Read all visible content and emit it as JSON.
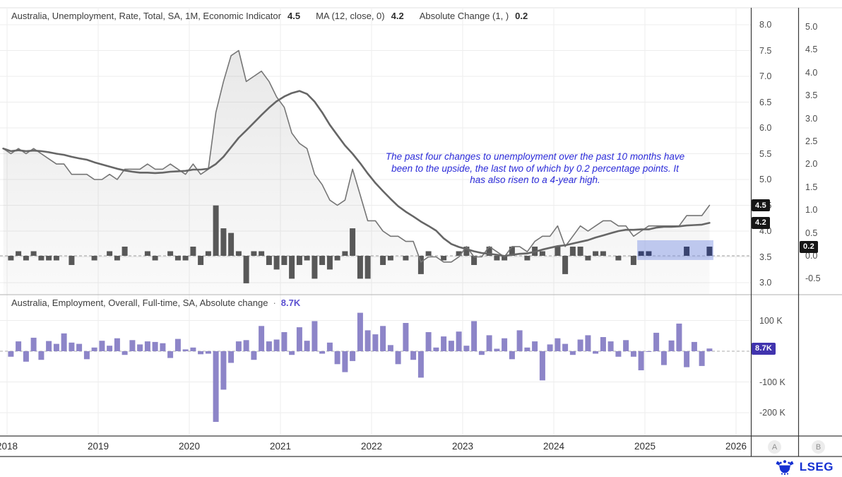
{
  "panel1": {
    "legend": [
      {
        "label": "Australia, Unemployment, Rate, Total, SA, 1M, Economic Indicator",
        "value": "4.5"
      },
      {
        "label": "MA (12, close, 0)",
        "value": "4.2"
      },
      {
        "label": "Absolute Change (1, )",
        "value": "0.2"
      }
    ],
    "annotation": "The past four changes to unemployment over the past 10 months have been to the upside, the last two of which by 0.2 percentage points. It has also risen to a 4-year high.",
    "badges": {
      "rate": "4.5",
      "ma": "4.2",
      "change": "0.2"
    }
  },
  "panel2": {
    "legend_label": "Australia, Employment, Overall, Full-time, SA, Absolute change",
    "separator": "·",
    "legend_value": "8.7K",
    "badge": "8.7K"
  },
  "axes": {
    "panel1_left_ticks": [
      "8.0",
      "7.5",
      "7.0",
      "6.5",
      "6.0",
      "5.5",
      "5.0",
      "4.5",
      "4.0",
      "3.5",
      "3.0"
    ],
    "panel1_right_ticks": [
      "5.0",
      "4.5",
      "4.0",
      "3.5",
      "3.0",
      "2.5",
      "2.0",
      "1.5",
      "1.0",
      "0.5",
      "0.0",
      "-0.5"
    ],
    "panel2_ticks": [
      "100 K",
      "-100 K",
      "-200 K"
    ],
    "years": [
      "2018",
      "2019",
      "2020",
      "2021",
      "2022",
      "2023",
      "2024",
      "2025",
      "2026"
    ]
  },
  "axis_buttons": {
    "a": "A",
    "b": "B"
  },
  "footer": {
    "logo": "LSEG"
  },
  "colors": {
    "grid": "#ededed",
    "frame_dark": "#3a3a3a",
    "divider": "#b0b0b0",
    "rate_line": "#757575",
    "ma_line": "#666666",
    "area_fill_top": "rgba(95,95,95,0.14)",
    "area_fill_bottom": "rgba(95,95,95,0.03)",
    "change_bar": "#585858",
    "highlight_bar": "#3a4470",
    "highlight_fill": "rgba(134,153,230,0.5)",
    "employment_bar": "#8d85c8",
    "zero_dash": "#9a9a9a",
    "annotation_blue": "#2b2bd8",
    "badge_dark": "#161616",
    "badge_indigo": "#4134ae",
    "lseg_blue": "#1631d2"
  },
  "chart_data": [
    {
      "type": "line",
      "title": "Australia, Unemployment, Rate, Total, SA, 1M, Economic Indicator",
      "x_start": "2017-12",
      "frequency": "monthly",
      "left_axis_range": [
        3.0,
        8.0
      ],
      "right_axis_range": [
        -0.5,
        5.0
      ],
      "legend_position": "top-left",
      "grid": true,
      "series": [
        {
          "name": "Unemployment rate % (SA)",
          "type": "line-area",
          "axis": "left",
          "values": [
            5.6,
            5.5,
            5.6,
            5.5,
            5.6,
            5.5,
            5.4,
            5.3,
            5.3,
            5.1,
            5.1,
            5.1,
            5.0,
            5.0,
            5.1,
            5.0,
            5.2,
            5.2,
            5.2,
            5.3,
            5.2,
            5.2,
            5.3,
            5.2,
            5.1,
            5.3,
            5.1,
            5.2,
            6.3,
            6.9,
            7.4,
            7.5,
            6.9,
            7.0,
            7.1,
            6.9,
            6.6,
            6.4,
            5.9,
            5.7,
            5.6,
            5.1,
            4.9,
            4.6,
            4.5,
            4.6,
            5.2,
            4.7,
            4.2,
            4.2,
            4.0,
            3.9,
            3.9,
            3.8,
            3.8,
            3.4,
            3.5,
            3.5,
            3.4,
            3.4,
            3.5,
            3.7,
            3.5,
            3.5,
            3.7,
            3.6,
            3.5,
            3.7,
            3.7,
            3.6,
            3.8,
            3.9,
            3.9,
            4.1,
            3.7,
            3.9,
            4.1,
            4.0,
            4.1,
            4.2,
            4.2,
            4.1,
            4.1,
            3.9,
            4.0,
            4.1,
            4.1,
            4.1,
            4.1,
            4.1,
            4.3,
            4.3,
            4.3,
            4.5
          ]
        },
        {
          "name": "MA (12, close, 0)",
          "type": "line",
          "axis": "left",
          "derived": "trailing_mean_12_of_series_0"
        },
        {
          "name": "Absolute Change (1, )",
          "type": "bar",
          "axis": "right",
          "derived": "first_difference_of_series_0"
        }
      ],
      "highlight": {
        "from_rate_index": 84,
        "to_rate_index": 93,
        "top_value": 0.34,
        "bottom_value": -0.09
      },
      "last_values": {
        "rate": 4.5,
        "ma12": 4.2,
        "abs_change": 0.2
      }
    },
    {
      "type": "bar",
      "title": "Australia, Employment, Overall, Full-time, SA, Absolute change (thousands)",
      "x_start": "2018-01",
      "frequency": "monthly",
      "axis_ticks_k": [
        100,
        -100,
        -200
      ],
      "values": [
        -18,
        32,
        -34,
        44,
        -28,
        33,
        24,
        58,
        28,
        24,
        -26,
        12,
        34,
        18,
        42,
        -12,
        36,
        22,
        32,
        30,
        26,
        -22,
        40,
        6,
        12,
        -10,
        -8,
        -230,
        -125,
        -38,
        32,
        36,
        -28,
        82,
        32,
        38,
        62,
        -12,
        78,
        34,
        98,
        -8,
        28,
        -42,
        -68,
        -32,
        125,
        68,
        55,
        82,
        20,
        -42,
        92,
        -28,
        -86,
        62,
        12,
        48,
        34,
        64,
        18,
        98,
        -12,
        52,
        8,
        42,
        -26,
        68,
        12,
        32,
        -95,
        22,
        42,
        24,
        -12,
        38,
        52,
        -8,
        46,
        32,
        -18,
        36,
        -18,
        -62,
        -2,
        60,
        -45,
        35,
        90,
        -52,
        30,
        -48,
        8.7
      ],
      "last_value_k": 8.7
    }
  ]
}
